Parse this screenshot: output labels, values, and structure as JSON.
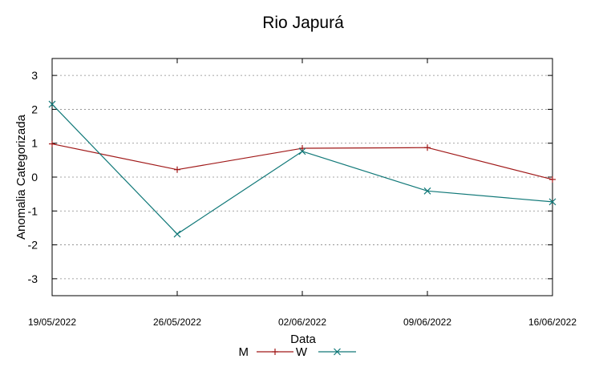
{
  "chart_data": {
    "type": "line",
    "title": "Rio Japurá",
    "xlabel": "Data",
    "ylabel": "Anomalia Categorizada",
    "categories": [
      "19/05/2022",
      "26/05/2022",
      "02/06/2022",
      "09/06/2022",
      "16/06/2022"
    ],
    "ylim": [
      -3.5,
      3.5
    ],
    "yticks": [
      -3,
      -2,
      -1,
      0,
      1,
      2,
      3
    ],
    "grid": true,
    "legend_position": "bottom-center",
    "series": [
      {
        "name": "M",
        "color": "#a01818",
        "marker": "plus",
        "values": [
          0.98,
          0.22,
          0.85,
          0.87,
          -0.07
        ]
      },
      {
        "name": "W",
        "color": "#107878",
        "marker": "cross",
        "values": [
          2.15,
          -1.68,
          0.76,
          -0.41,
          -0.73
        ]
      }
    ]
  }
}
